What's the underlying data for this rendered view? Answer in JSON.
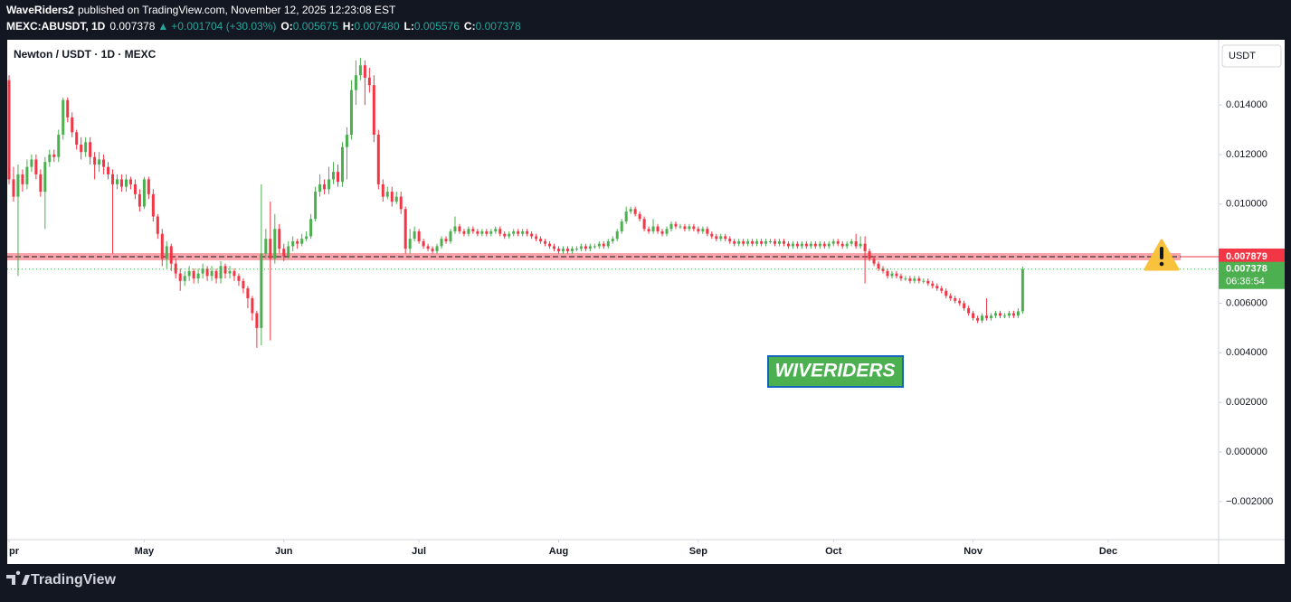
{
  "header": {
    "author": "WaveRiders2",
    "published": "published on TradingView.com, November 12, 2025 12:23:08 EST",
    "symbol": "MEXC:ABUSDT, 1D",
    "last": "0.007378",
    "arrow": "▲",
    "change": "+0.001704 (+30.03%)",
    "o_label": "O:",
    "o": "0.005675",
    "h_label": "H:",
    "h": "0.007480",
    "l_label": "L:",
    "l": "0.005576",
    "c_label": "C:",
    "c": "0.007378"
  },
  "chart_data": {
    "type": "candlestick",
    "title": "Newton / USDT · 1D · MEXC",
    "currency": "USDT",
    "up_color": "#4caf50",
    "down_color": "#f23645",
    "grid": false,
    "open": [
      0.015,
      0.011,
      0.0103,
      0.0112,
      0.0108,
      0.0115,
      0.0118,
      0.0112,
      0.0105,
      0.0117,
      0.012,
      0.0119,
      0.0128,
      0.0142,
      0.0135,
      0.0129,
      0.0124,
      0.0121,
      0.0125,
      0.0119,
      0.0116,
      0.0118,
      0.0115,
      0.0112,
      0.0108,
      0.011,
      0.0107,
      0.011,
      0.0108,
      0.0104,
      0.0099,
      0.011,
      0.0104,
      0.0095,
      0.0088,
      0.0078,
      0.0083,
      0.0076,
      0.0072,
      0.0069,
      0.0071,
      0.0073,
      0.007,
      0.0072,
      0.0074,
      0.0071,
      0.0073,
      0.007,
      0.0075,
      0.0072,
      0.0073,
      0.0071,
      0.0069,
      0.0066,
      0.0062,
      0.0056,
      0.005,
      0.008,
      0.0086,
      0.0078,
      0.009,
      0.0082,
      0.0079,
      0.0083,
      0.0085,
      0.0084,
      0.0086,
      0.0087,
      0.0094,
      0.0105,
      0.0108,
      0.0106,
      0.011,
      0.0113,
      0.0109,
      0.0123,
      0.0128,
      0.0146,
      0.0152,
      0.0156,
      0.0151,
      0.0148,
      0.0128,
      0.0108,
      0.0103,
      0.0105,
      0.0101,
      0.0103,
      0.0098,
      0.0082,
      0.0086,
      0.0089,
      0.0085,
      0.0083,
      0.0082,
      0.0081,
      0.0083,
      0.0086,
      0.0085,
      0.0089,
      0.0091,
      0.0089,
      0.0088,
      0.009,
      0.0089,
      0.0088,
      0.0089,
      0.0088,
      0.0089,
      0.009,
      0.0088,
      0.0087,
      0.0088,
      0.0089,
      0.0088,
      0.0089,
      0.0088,
      0.0087,
      0.0086,
      0.0085,
      0.0084,
      0.0083,
      0.0082,
      0.0081,
      0.0082,
      0.0081,
      0.0082,
      0.0082,
      0.0083,
      0.0082,
      0.0083,
      0.0083,
      0.0084,
      0.0083,
      0.0085,
      0.0086,
      0.0089,
      0.0093,
      0.0097,
      0.0098,
      0.0096,
      0.0094,
      0.009,
      0.0089,
      0.0091,
      0.0089,
      0.0088,
      0.009,
      0.0092,
      0.0091,
      0.0091,
      0.009,
      0.0091,
      0.009,
      0.0089,
      0.009,
      0.0088,
      0.0087,
      0.0086,
      0.0087,
      0.0086,
      0.0085,
      0.0084,
      0.0085,
      0.0084,
      0.0085,
      0.0084,
      0.0085,
      0.0084,
      0.0085,
      0.0085,
      0.0084,
      0.0085,
      0.0084,
      0.0083,
      0.0084,
      0.0083,
      0.0084,
      0.0083,
      0.0084,
      0.0083,
      0.0084,
      0.0083,
      0.0084,
      0.0085,
      0.0084,
      0.0083,
      0.0084,
      0.0085,
      0.0083,
      0.0084,
      0.0081,
      0.0078,
      0.0076,
      0.0074,
      0.0073,
      0.0071,
      0.0072,
      0.0071,
      0.007,
      0.007,
      0.0069,
      0.007,
      0.0069,
      0.0069,
      0.0068,
      0.0067,
      0.0066,
      0.0065,
      0.0063,
      0.0062,
      0.0061,
      0.006,
      0.0058,
      0.0056,
      0.0054,
      0.0053,
      0.0055,
      0.0054,
      0.0055,
      0.0056,
      0.0055,
      0.0055,
      0.0056,
      0.0055,
      0.005675
    ],
    "high": [
      0.0152,
      0.0115,
      0.0116,
      0.0114,
      0.0118,
      0.012,
      0.012,
      0.0114,
      0.0119,
      0.0122,
      0.0122,
      0.013,
      0.0143,
      0.0143,
      0.0137,
      0.013,
      0.0127,
      0.0127,
      0.0127,
      0.0121,
      0.0121,
      0.012,
      0.0117,
      0.0114,
      0.0112,
      0.0112,
      0.0112,
      0.0111,
      0.011,
      0.0106,
      0.0111,
      0.0111,
      0.0106,
      0.0096,
      0.009,
      0.0085,
      0.0084,
      0.0078,
      0.0074,
      0.0073,
      0.0075,
      0.0074,
      0.0074,
      0.0076,
      0.0075,
      0.0075,
      0.0074,
      0.0077,
      0.0076,
      0.0075,
      0.0074,
      0.0072,
      0.007,
      0.0067,
      0.0063,
      0.0057,
      0.0108,
      0.009,
      0.0101,
      0.0096,
      0.0092,
      0.0084,
      0.0085,
      0.0087,
      0.0086,
      0.0088,
      0.0089,
      0.0096,
      0.0107,
      0.0112,
      0.011,
      0.0115,
      0.0117,
      0.0116,
      0.0125,
      0.0131,
      0.015,
      0.0158,
      0.0159,
      0.0158,
      0.0155,
      0.0152,
      0.013,
      0.011,
      0.0107,
      0.0107,
      0.0105,
      0.0105,
      0.0099,
      0.009,
      0.0091,
      0.009,
      0.0086,
      0.0084,
      0.0083,
      0.0084,
      0.0087,
      0.0087,
      0.009,
      0.0095,
      0.0092,
      0.009,
      0.0091,
      0.0091,
      0.009,
      0.009,
      0.009,
      0.009,
      0.0091,
      0.0091,
      0.0089,
      0.0089,
      0.009,
      0.009,
      0.009,
      0.009,
      0.0089,
      0.0088,
      0.0087,
      0.0086,
      0.0085,
      0.0084,
      0.0083,
      0.0083,
      0.0083,
      0.0083,
      0.0083,
      0.0084,
      0.0084,
      0.0084,
      0.0084,
      0.0085,
      0.0085,
      0.0086,
      0.0087,
      0.009,
      0.0094,
      0.0099,
      0.0099,
      0.0099,
      0.0097,
      0.0095,
      0.0091,
      0.0094,
      0.0092,
      0.009,
      0.0091,
      0.0093,
      0.0093,
      0.0092,
      0.0092,
      0.0092,
      0.0092,
      0.0091,
      0.0091,
      0.0091,
      0.0089,
      0.0088,
      0.0088,
      0.0088,
      0.0087,
      0.0086,
      0.0086,
      0.0086,
      0.0086,
      0.0086,
      0.0086,
      0.0086,
      0.0086,
      0.0086,
      0.0086,
      0.0086,
      0.0086,
      0.0085,
      0.0085,
      0.0085,
      0.0085,
      0.0085,
      0.0085,
      0.0085,
      0.0085,
      0.0085,
      0.0085,
      0.0086,
      0.0086,
      0.0085,
      0.0085,
      0.0086,
      0.0088,
      0.0087,
      0.0087,
      0.0082,
      0.0079,
      0.0077,
      0.0075,
      0.0074,
      0.0073,
      0.0073,
      0.0072,
      0.0071,
      0.0071,
      0.0071,
      0.0071,
      0.007,
      0.007,
      0.0069,
      0.0068,
      0.0067,
      0.0066,
      0.0064,
      0.0063,
      0.0062,
      0.0061,
      0.0059,
      0.0057,
      0.0055,
      0.0056,
      0.0062,
      0.0056,
      0.0057,
      0.0057,
      0.0056,
      0.0057,
      0.0057,
      0.0058,
      0.00748
    ],
    "low": [
      0.0108,
      0.0101,
      0.0071,
      0.0105,
      0.0106,
      0.0113,
      0.011,
      0.0103,
      0.009,
      0.0115,
      0.0117,
      0.0117,
      0.0126,
      0.0133,
      0.0127,
      0.0122,
      0.0118,
      0.0119,
      0.0116,
      0.011,
      0.0113,
      0.0112,
      0.011,
      0.008,
      0.0106,
      0.0105,
      0.0105,
      0.0106,
      0.0102,
      0.0097,
      0.0098,
      0.0102,
      0.0093,
      0.0086,
      0.0075,
      0.0074,
      0.0073,
      0.007,
      0.0065,
      0.0067,
      0.0069,
      0.0068,
      0.0068,
      0.007,
      0.0069,
      0.0069,
      0.0068,
      0.0068,
      0.007,
      0.007,
      0.0069,
      0.0067,
      0.0064,
      0.0058,
      0.0053,
      0.0042,
      0.0043,
      0.0078,
      0.0045,
      0.0076,
      0.008,
      0.0077,
      0.0078,
      0.0081,
      0.0082,
      0.0083,
      0.0085,
      0.0086,
      0.0093,
      0.0103,
      0.0104,
      0.0104,
      0.0108,
      0.0107,
      0.0107,
      0.011,
      0.0126,
      0.014,
      0.015,
      0.014,
      0.0145,
      0.0125,
      0.0106,
      0.0101,
      0.0102,
      0.0099,
      0.01,
      0.0096,
      0.008,
      0.008,
      0.0085,
      0.0084,
      0.0082,
      0.0081,
      0.008,
      0.008,
      0.0082,
      0.0084,
      0.0084,
      0.0088,
      0.0088,
      0.0087,
      0.0087,
      0.0088,
      0.0087,
      0.0087,
      0.0087,
      0.0087,
      0.0088,
      0.0087,
      0.0086,
      0.0086,
      0.0087,
      0.0087,
      0.0087,
      0.0087,
      0.0086,
      0.0085,
      0.0084,
      0.0083,
      0.0082,
      0.0081,
      0.008,
      0.008,
      0.008,
      0.008,
      0.0081,
      0.0081,
      0.0081,
      0.0081,
      0.0082,
      0.0082,
      0.0082,
      0.0082,
      0.0084,
      0.0085,
      0.0088,
      0.0092,
      0.0096,
      0.0095,
      0.0093,
      0.0089,
      0.0088,
      0.0088,
      0.0088,
      0.0087,
      0.0087,
      0.0089,
      0.009,
      0.009,
      0.0089,
      0.0089,
      0.0089,
      0.0088,
      0.0088,
      0.0087,
      0.0086,
      0.0085,
      0.0085,
      0.0085,
      0.0084,
      0.0083,
      0.0083,
      0.0083,
      0.0083,
      0.0083,
      0.0083,
      0.0083,
      0.0083,
      0.0084,
      0.0083,
      0.0083,
      0.0083,
      0.0082,
      0.0082,
      0.0082,
      0.0082,
      0.0082,
      0.0082,
      0.0082,
      0.0082,
      0.0082,
      0.0082,
      0.0083,
      0.0083,
      0.0082,
      0.0082,
      0.0083,
      0.0082,
      0.0082,
      0.0068,
      0.0077,
      0.0075,
      0.0073,
      0.0072,
      0.007,
      0.007,
      0.007,
      0.0069,
      0.0069,
      0.0068,
      0.0068,
      0.0068,
      0.0068,
      0.0067,
      0.0066,
      0.0065,
      0.0064,
      0.0062,
      0.0061,
      0.006,
      0.0059,
      0.0057,
      0.0055,
      0.0053,
      0.0052,
      0.0052,
      0.0053,
      0.0053,
      0.0054,
      0.0054,
      0.0054,
      0.0054,
      0.0054,
      0.0054,
      0.005576
    ],
    "close": [
      0.011,
      0.0103,
      0.0112,
      0.0108,
      0.0115,
      0.0118,
      0.0112,
      0.0105,
      0.0117,
      0.012,
      0.0119,
      0.0128,
      0.0142,
      0.0135,
      0.0129,
      0.0124,
      0.0121,
      0.0125,
      0.0119,
      0.0116,
      0.0118,
      0.0115,
      0.0112,
      0.0108,
      0.011,
      0.0107,
      0.011,
      0.0108,
      0.0104,
      0.0099,
      0.011,
      0.0104,
      0.0095,
      0.0088,
      0.0078,
      0.0083,
      0.0076,
      0.0072,
      0.0069,
      0.0071,
      0.0073,
      0.007,
      0.0072,
      0.0074,
      0.0071,
      0.0073,
      0.007,
      0.0075,
      0.0072,
      0.0073,
      0.0071,
      0.0069,
      0.0066,
      0.0062,
      0.0056,
      0.005,
      0.008,
      0.0086,
      0.0078,
      0.009,
      0.0082,
      0.0079,
      0.0083,
      0.0085,
      0.0084,
      0.0086,
      0.0087,
      0.0094,
      0.0105,
      0.0108,
      0.0106,
      0.011,
      0.0113,
      0.0109,
      0.0123,
      0.0128,
      0.0146,
      0.0152,
      0.0156,
      0.0151,
      0.0148,
      0.0128,
      0.0108,
      0.0103,
      0.0105,
      0.0101,
      0.0103,
      0.0098,
      0.0082,
      0.0086,
      0.0089,
      0.0085,
      0.0083,
      0.0082,
      0.0081,
      0.0083,
      0.0086,
      0.0085,
      0.0089,
      0.0091,
      0.0089,
      0.0088,
      0.009,
      0.0089,
      0.0088,
      0.0089,
      0.0088,
      0.0089,
      0.009,
      0.0088,
      0.0087,
      0.0088,
      0.0089,
      0.0088,
      0.0089,
      0.0088,
      0.0087,
      0.0086,
      0.0085,
      0.0084,
      0.0083,
      0.0082,
      0.0081,
      0.0082,
      0.0081,
      0.0082,
      0.0082,
      0.0083,
      0.0082,
      0.0083,
      0.0083,
      0.0084,
      0.0083,
      0.0085,
      0.0086,
      0.0089,
      0.0093,
      0.0097,
      0.0098,
      0.0096,
      0.0094,
      0.009,
      0.0089,
      0.0091,
      0.0089,
      0.0088,
      0.009,
      0.0092,
      0.0091,
      0.0091,
      0.009,
      0.0091,
      0.009,
      0.0089,
      0.009,
      0.0088,
      0.0087,
      0.0086,
      0.0087,
      0.0086,
      0.0085,
      0.0084,
      0.0085,
      0.0084,
      0.0085,
      0.0084,
      0.0085,
      0.0084,
      0.0085,
      0.0085,
      0.0084,
      0.0085,
      0.0084,
      0.0083,
      0.0084,
      0.0083,
      0.0084,
      0.0083,
      0.0084,
      0.0083,
      0.0084,
      0.0083,
      0.0084,
      0.0085,
      0.0084,
      0.0083,
      0.0084,
      0.0085,
      0.0083,
      0.0084,
      0.0081,
      0.0078,
      0.0076,
      0.0074,
      0.0073,
      0.0071,
      0.0072,
      0.0071,
      0.007,
      0.007,
      0.0069,
      0.007,
      0.0069,
      0.0069,
      0.0068,
      0.0067,
      0.0066,
      0.0065,
      0.0063,
      0.0062,
      0.0061,
      0.006,
      0.0058,
      0.0056,
      0.0054,
      0.0053,
      0.0055,
      0.0054,
      0.0055,
      0.0056,
      0.0055,
      0.0055,
      0.0056,
      0.0055,
      0.005675,
      0.007378
    ],
    "xlim": [
      -0.4,
      268.5
    ],
    "xticks": [
      {
        "value": 0,
        "label": "pr"
      },
      {
        "value": 30,
        "label": "May"
      },
      {
        "value": 61,
        "label": "Jun"
      },
      {
        "value": 91,
        "label": "Jul"
      },
      {
        "value": 122,
        "label": "Aug"
      },
      {
        "value": 153,
        "label": "Sep"
      },
      {
        "value": 183,
        "label": "Oct"
      },
      {
        "value": 214,
        "label": "Nov"
      },
      {
        "value": 244,
        "label": "Dec"
      }
    ],
    "ylim": [
      -0.0035,
      0.01663
    ],
    "yticks": [
      {
        "value": -0.002,
        "label": "−0.002000"
      },
      {
        "value": 0,
        "label": "0.000000"
      },
      {
        "value": 0.002,
        "label": "0.002000"
      },
      {
        "value": 0.004,
        "label": "0.004000"
      },
      {
        "value": 0.006,
        "label": "0.006000"
      },
      {
        "value": 0.01,
        "label": "0.010000"
      },
      {
        "value": 0.012,
        "label": "0.012000"
      },
      {
        "value": 0.014,
        "label": "0.014000"
      }
    ],
    "level": {
      "value": 0.007879,
      "color": "#f23645"
    },
    "countdown": "06:36:54",
    "watermark": "WIVERIDERS"
  },
  "footer": {
    "brand": "TradingView"
  }
}
